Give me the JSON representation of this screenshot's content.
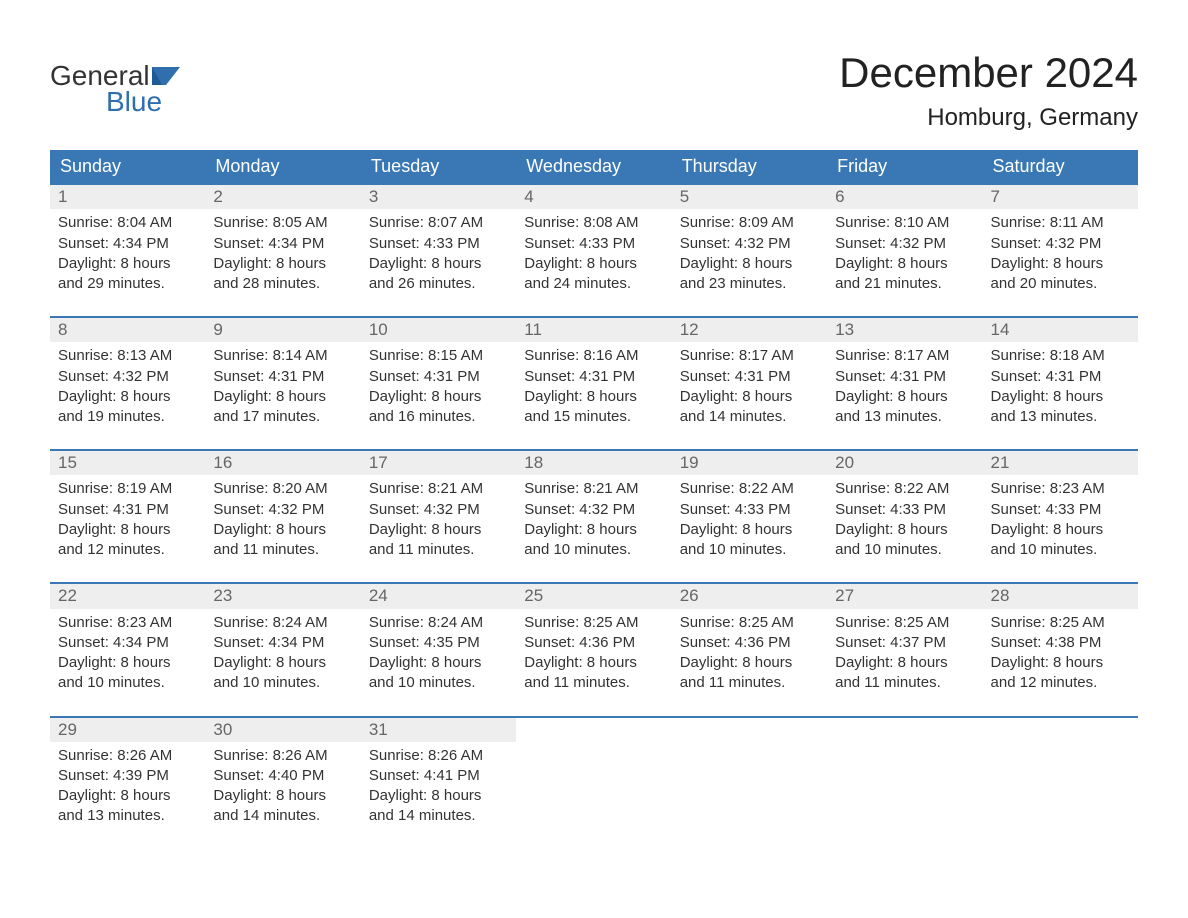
{
  "logo": {
    "word1": "General",
    "word2": "Blue"
  },
  "title": "December 2024",
  "location": "Homburg, Germany",
  "colors": {
    "header_bg": "#3a78b5",
    "header_text": "#ffffff",
    "week_border": "#3a78b5",
    "daynum_bg": "#eeeeee",
    "daynum_text": "#666666",
    "body_text": "#333333",
    "logo_blue": "#2f6fae",
    "page_bg": "#ffffff"
  },
  "fonts": {
    "title_size_pt": 32,
    "location_size_pt": 18,
    "header_size_pt": 14,
    "body_size_pt": 11
  },
  "weekdays": [
    "Sunday",
    "Monday",
    "Tuesday",
    "Wednesday",
    "Thursday",
    "Friday",
    "Saturday"
  ],
  "weeks": [
    [
      {
        "date": "1",
        "sunrise": "Sunrise: 8:04 AM",
        "sunset": "Sunset: 4:34 PM",
        "daylight1": "Daylight: 8 hours",
        "daylight2": "and 29 minutes."
      },
      {
        "date": "2",
        "sunrise": "Sunrise: 8:05 AM",
        "sunset": "Sunset: 4:34 PM",
        "daylight1": "Daylight: 8 hours",
        "daylight2": "and 28 minutes."
      },
      {
        "date": "3",
        "sunrise": "Sunrise: 8:07 AM",
        "sunset": "Sunset: 4:33 PM",
        "daylight1": "Daylight: 8 hours",
        "daylight2": "and 26 minutes."
      },
      {
        "date": "4",
        "sunrise": "Sunrise: 8:08 AM",
        "sunset": "Sunset: 4:33 PM",
        "daylight1": "Daylight: 8 hours",
        "daylight2": "and 24 minutes."
      },
      {
        "date": "5",
        "sunrise": "Sunrise: 8:09 AM",
        "sunset": "Sunset: 4:32 PM",
        "daylight1": "Daylight: 8 hours",
        "daylight2": "and 23 minutes."
      },
      {
        "date": "6",
        "sunrise": "Sunrise: 8:10 AM",
        "sunset": "Sunset: 4:32 PM",
        "daylight1": "Daylight: 8 hours",
        "daylight2": "and 21 minutes."
      },
      {
        "date": "7",
        "sunrise": "Sunrise: 8:11 AM",
        "sunset": "Sunset: 4:32 PM",
        "daylight1": "Daylight: 8 hours",
        "daylight2": "and 20 minutes."
      }
    ],
    [
      {
        "date": "8",
        "sunrise": "Sunrise: 8:13 AM",
        "sunset": "Sunset: 4:32 PM",
        "daylight1": "Daylight: 8 hours",
        "daylight2": "and 19 minutes."
      },
      {
        "date": "9",
        "sunrise": "Sunrise: 8:14 AM",
        "sunset": "Sunset: 4:31 PM",
        "daylight1": "Daylight: 8 hours",
        "daylight2": "and 17 minutes."
      },
      {
        "date": "10",
        "sunrise": "Sunrise: 8:15 AM",
        "sunset": "Sunset: 4:31 PM",
        "daylight1": "Daylight: 8 hours",
        "daylight2": "and 16 minutes."
      },
      {
        "date": "11",
        "sunrise": "Sunrise: 8:16 AM",
        "sunset": "Sunset: 4:31 PM",
        "daylight1": "Daylight: 8 hours",
        "daylight2": "and 15 minutes."
      },
      {
        "date": "12",
        "sunrise": "Sunrise: 8:17 AM",
        "sunset": "Sunset: 4:31 PM",
        "daylight1": "Daylight: 8 hours",
        "daylight2": "and 14 minutes."
      },
      {
        "date": "13",
        "sunrise": "Sunrise: 8:17 AM",
        "sunset": "Sunset: 4:31 PM",
        "daylight1": "Daylight: 8 hours",
        "daylight2": "and 13 minutes."
      },
      {
        "date": "14",
        "sunrise": "Sunrise: 8:18 AM",
        "sunset": "Sunset: 4:31 PM",
        "daylight1": "Daylight: 8 hours",
        "daylight2": "and 13 minutes."
      }
    ],
    [
      {
        "date": "15",
        "sunrise": "Sunrise: 8:19 AM",
        "sunset": "Sunset: 4:31 PM",
        "daylight1": "Daylight: 8 hours",
        "daylight2": "and 12 minutes."
      },
      {
        "date": "16",
        "sunrise": "Sunrise: 8:20 AM",
        "sunset": "Sunset: 4:32 PM",
        "daylight1": "Daylight: 8 hours",
        "daylight2": "and 11 minutes."
      },
      {
        "date": "17",
        "sunrise": "Sunrise: 8:21 AM",
        "sunset": "Sunset: 4:32 PM",
        "daylight1": "Daylight: 8 hours",
        "daylight2": "and 11 minutes."
      },
      {
        "date": "18",
        "sunrise": "Sunrise: 8:21 AM",
        "sunset": "Sunset: 4:32 PM",
        "daylight1": "Daylight: 8 hours",
        "daylight2": "and 10 minutes."
      },
      {
        "date": "19",
        "sunrise": "Sunrise: 8:22 AM",
        "sunset": "Sunset: 4:33 PM",
        "daylight1": "Daylight: 8 hours",
        "daylight2": "and 10 minutes."
      },
      {
        "date": "20",
        "sunrise": "Sunrise: 8:22 AM",
        "sunset": "Sunset: 4:33 PM",
        "daylight1": "Daylight: 8 hours",
        "daylight2": "and 10 minutes."
      },
      {
        "date": "21",
        "sunrise": "Sunrise: 8:23 AM",
        "sunset": "Sunset: 4:33 PM",
        "daylight1": "Daylight: 8 hours",
        "daylight2": "and 10 minutes."
      }
    ],
    [
      {
        "date": "22",
        "sunrise": "Sunrise: 8:23 AM",
        "sunset": "Sunset: 4:34 PM",
        "daylight1": "Daylight: 8 hours",
        "daylight2": "and 10 minutes."
      },
      {
        "date": "23",
        "sunrise": "Sunrise: 8:24 AM",
        "sunset": "Sunset: 4:34 PM",
        "daylight1": "Daylight: 8 hours",
        "daylight2": "and 10 minutes."
      },
      {
        "date": "24",
        "sunrise": "Sunrise: 8:24 AM",
        "sunset": "Sunset: 4:35 PM",
        "daylight1": "Daylight: 8 hours",
        "daylight2": "and 10 minutes."
      },
      {
        "date": "25",
        "sunrise": "Sunrise: 8:25 AM",
        "sunset": "Sunset: 4:36 PM",
        "daylight1": "Daylight: 8 hours",
        "daylight2": "and 11 minutes."
      },
      {
        "date": "26",
        "sunrise": "Sunrise: 8:25 AM",
        "sunset": "Sunset: 4:36 PM",
        "daylight1": "Daylight: 8 hours",
        "daylight2": "and 11 minutes."
      },
      {
        "date": "27",
        "sunrise": "Sunrise: 8:25 AM",
        "sunset": "Sunset: 4:37 PM",
        "daylight1": "Daylight: 8 hours",
        "daylight2": "and 11 minutes."
      },
      {
        "date": "28",
        "sunrise": "Sunrise: 8:25 AM",
        "sunset": "Sunset: 4:38 PM",
        "daylight1": "Daylight: 8 hours",
        "daylight2": "and 12 minutes."
      }
    ],
    [
      {
        "date": "29",
        "sunrise": "Sunrise: 8:26 AM",
        "sunset": "Sunset: 4:39 PM",
        "daylight1": "Daylight: 8 hours",
        "daylight2": "and 13 minutes."
      },
      {
        "date": "30",
        "sunrise": "Sunrise: 8:26 AM",
        "sunset": "Sunset: 4:40 PM",
        "daylight1": "Daylight: 8 hours",
        "daylight2": "and 14 minutes."
      },
      {
        "date": "31",
        "sunrise": "Sunrise: 8:26 AM",
        "sunset": "Sunset: 4:41 PM",
        "daylight1": "Daylight: 8 hours",
        "daylight2": "and 14 minutes."
      },
      null,
      null,
      null,
      null
    ]
  ]
}
